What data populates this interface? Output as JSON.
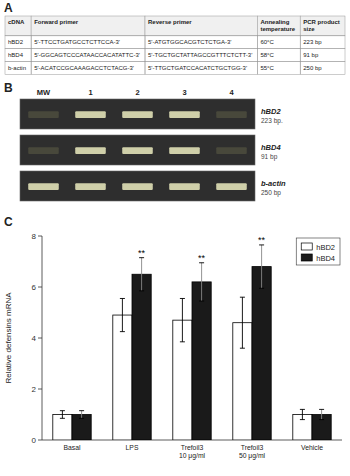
{
  "chart_data": [
    {
      "type": "table",
      "title": "A",
      "columns": [
        "cDNA",
        "Forward primer",
        "Reverse primer",
        "Annealing\ntemperature",
        "PCR product\nsize"
      ],
      "rows": [
        [
          "hBD2",
          "5'-TTCCTGATGCCTCTTCCA-3'",
          "5'-ATGTGGCACGTCTCTGA-3'",
          "60°C",
          "223 bp"
        ],
        [
          "hBD4",
          "5'-GGCAGTCCCATAACCACATATTC-3'",
          "5'-TGCTGCTATTAGCCGTTTCTCTT-3'",
          "58°C",
          "91 bp"
        ],
        [
          "b-actin",
          "5'-ACATCCGCAAAGACCTCTACG-3'",
          "5'-TTGCTGATCCACATCTGCTGG-3'",
          "55°C",
          "250 bp"
        ]
      ]
    },
    {
      "type": "gel",
      "title": "B",
      "categories": [
        "MW",
        "1",
        "2",
        "3",
        "4"
      ],
      "color": "#2e2e2e",
      "series": [
        {
          "name": "hBD2",
          "subtitle": "223 bp.",
          "bright_lanes": [
            1,
            2,
            3
          ]
        },
        {
          "name": "hBD4",
          "subtitle": "91 bp",
          "bright_lanes": [
            1,
            2,
            3
          ]
        },
        {
          "name": "b-actin",
          "subtitle": "250 bp",
          "bright_lanes": [
            0,
            1,
            2,
            3,
            4
          ]
        }
      ]
    },
    {
      "type": "bar",
      "title": "C",
      "categories": [
        "Basal",
        "LPS",
        "Trefoil3\n10 μg/ml",
        "Trefoil3\n50 μg/ml",
        "Vehicle"
      ],
      "series": [
        {
          "name": "hBD2",
          "color": "white",
          "values": [
            1.0,
            4.9,
            4.7,
            4.6,
            1.0
          ],
          "errors": [
            0.15,
            0.65,
            0.85,
            1.0,
            0.2
          ]
        },
        {
          "name": "hBD4",
          "color": "#1a1a1a",
          "values": [
            1.0,
            6.5,
            6.2,
            6.8,
            1.0
          ],
          "errors": [
            0.15,
            0.65,
            0.75,
            0.85,
            0.2
          ]
        }
      ],
      "ylabel": "Relative defensins mRNA",
      "ylim": [
        0,
        8
      ],
      "yticks": [
        0,
        2,
        4,
        6,
        8
      ],
      "legend": "upper right",
      "grid": false,
      "annotations": [
        {
          "text": "**",
          "category": "LPS",
          "series": "hBD4"
        },
        {
          "text": "**",
          "category": "Trefoil3\n10 μg/ml",
          "series": "hBD4"
        },
        {
          "text": "**",
          "category": "Trefoil3\n50 μg/ml",
          "series": "hBD4"
        }
      ]
    }
  ]
}
